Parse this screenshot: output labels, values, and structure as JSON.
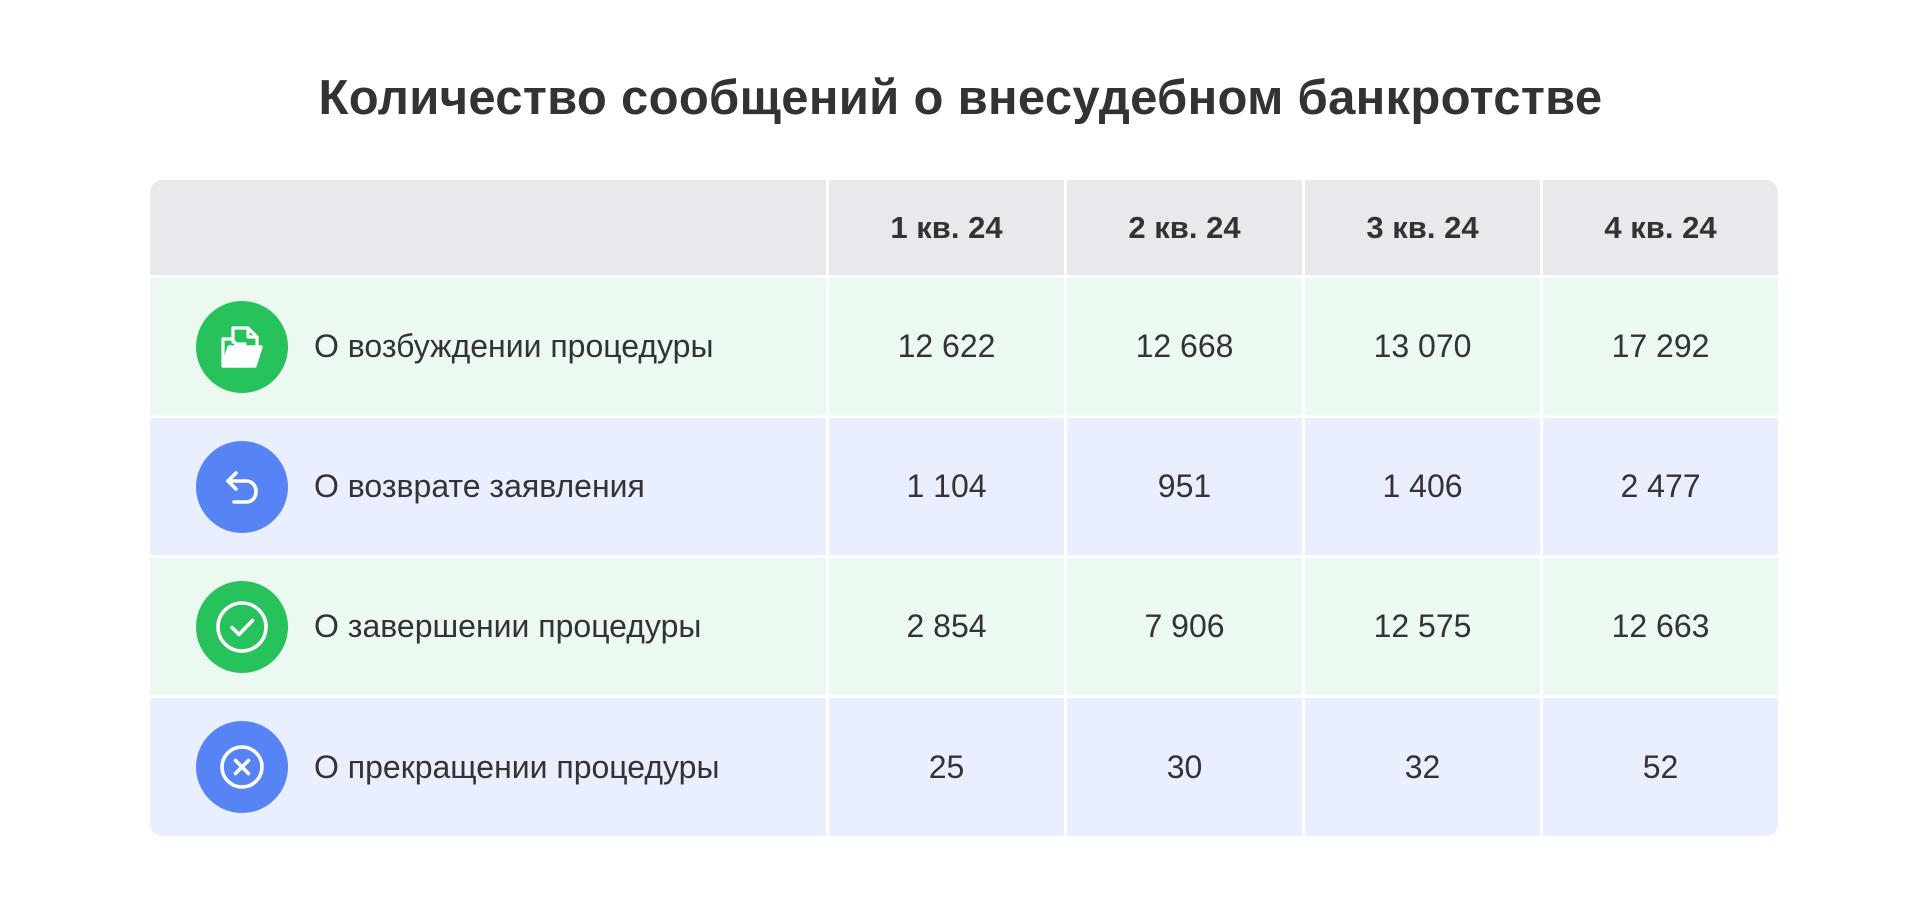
{
  "title": "Количество сообщений о внесудебном банкротстве",
  "colors": {
    "green_icon": "#27c25c",
    "blue_icon": "#5784f5",
    "header_bg": "#e7e9ec",
    "green_row_bg": "#ecf9f1",
    "blue_row_bg": "#e9effe"
  },
  "table": {
    "headers": [
      "",
      "1 кв. 24",
      "2 кв. 24",
      "3 кв. 24",
      "4 кв. 24"
    ],
    "rows": [
      {
        "icon": "folder-document-icon",
        "label": "О возбуждении процедуры",
        "values": [
          "12 622",
          "12 668",
          "13 070",
          "17 292"
        ]
      },
      {
        "icon": "return-arrow-icon",
        "label": "О возврате заявления",
        "values": [
          "1 104",
          "951",
          "1 406",
          "2 477"
        ]
      },
      {
        "icon": "check-circle-icon",
        "label": "О завершении процедуры",
        "values": [
          "2 854",
          "7 906",
          "12 575",
          "12 663"
        ]
      },
      {
        "icon": "cross-circle-icon",
        "label": "О прекращении процедуры",
        "values": [
          "25",
          "30",
          "32",
          "52"
        ]
      }
    ]
  }
}
